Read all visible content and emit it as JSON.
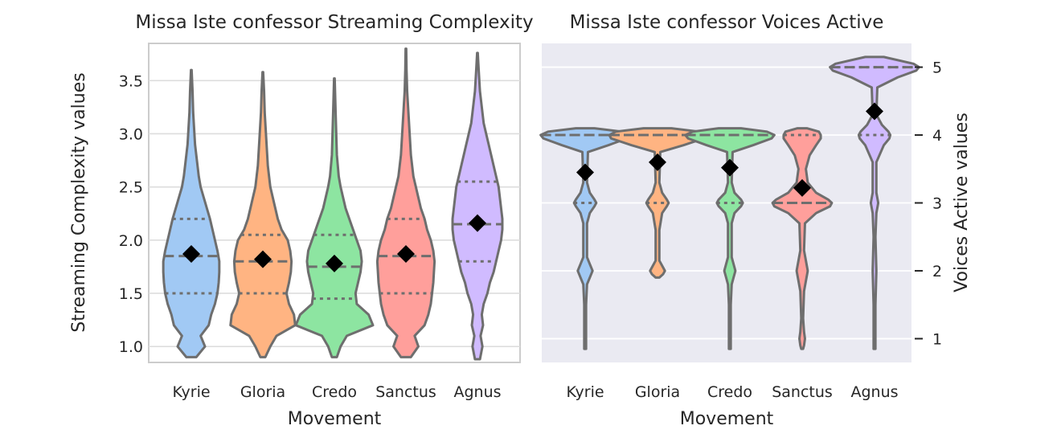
{
  "chart_data": [
    {
      "type": "violin",
      "title": "Missa Iste confessor Streaming Complexity",
      "xlabel": "Movement",
      "ylabel": "Streaming Complexity values",
      "categories": [
        "Kyrie",
        "Gloria",
        "Credo",
        "Sanctus",
        "Agnus"
      ],
      "ylim": [
        0.85,
        3.85
      ],
      "yticks": [
        "1.0",
        "1.5",
        "2.0",
        "2.5",
        "3.0",
        "3.5"
      ],
      "style": "whitegrid",
      "grid": true,
      "colors": [
        "#a1c9f4",
        "#ffb482",
        "#8de5a1",
        "#ff9f9b",
        "#d0bbff"
      ],
      "series": [
        {
          "name": "Kyrie",
          "min": 0.9,
          "max": 3.6,
          "q1": 1.5,
          "median": 1.85,
          "q3": 2.2,
          "mean": 1.87,
          "density": [
            [
              0.9,
              0.08
            ],
            [
              1.0,
              0.22
            ],
            [
              1.1,
              0.15
            ],
            [
              1.2,
              0.28
            ],
            [
              1.3,
              0.32
            ],
            [
              1.4,
              0.38
            ],
            [
              1.5,
              0.42
            ],
            [
              1.6,
              0.44
            ],
            [
              1.7,
              0.45
            ],
            [
              1.8,
              0.45
            ],
            [
              1.9,
              0.42
            ],
            [
              2.0,
              0.38
            ],
            [
              2.1,
              0.34
            ],
            [
              2.2,
              0.3
            ],
            [
              2.3,
              0.25
            ],
            [
              2.4,
              0.2
            ],
            [
              2.5,
              0.15
            ],
            [
              2.6,
              0.12
            ],
            [
              2.7,
              0.1
            ],
            [
              2.8,
              0.08
            ],
            [
              2.9,
              0.06
            ],
            [
              3.0,
              0.05
            ],
            [
              3.2,
              0.03
            ],
            [
              3.4,
              0.02
            ],
            [
              3.6,
              0.005
            ]
          ]
        },
        {
          "name": "Gloria",
          "min": 0.9,
          "max": 3.58,
          "q1": 1.5,
          "median": 1.8,
          "q3": 2.05,
          "mean": 1.82,
          "density": [
            [
              0.9,
              0.04
            ],
            [
              1.0,
              0.12
            ],
            [
              1.1,
              0.22
            ],
            [
              1.2,
              0.52
            ],
            [
              1.3,
              0.5
            ],
            [
              1.4,
              0.42
            ],
            [
              1.5,
              0.38
            ],
            [
              1.6,
              0.42
            ],
            [
              1.7,
              0.45
            ],
            [
              1.8,
              0.46
            ],
            [
              1.9,
              0.44
            ],
            [
              2.0,
              0.4
            ],
            [
              2.1,
              0.3
            ],
            [
              2.2,
              0.24
            ],
            [
              2.3,
              0.2
            ],
            [
              2.4,
              0.16
            ],
            [
              2.5,
              0.12
            ],
            [
              2.6,
              0.1
            ],
            [
              2.7,
              0.08
            ],
            [
              2.8,
              0.07
            ],
            [
              3.0,
              0.05
            ],
            [
              3.2,
              0.03
            ],
            [
              3.4,
              0.02
            ],
            [
              3.58,
              0.005
            ]
          ]
        },
        {
          "name": "Credo",
          "min": 0.9,
          "max": 3.52,
          "q1": 1.45,
          "median": 1.75,
          "q3": 2.05,
          "mean": 1.78,
          "density": [
            [
              0.9,
              0.04
            ],
            [
              1.0,
              0.1
            ],
            [
              1.1,
              0.2
            ],
            [
              1.2,
              0.62
            ],
            [
              1.3,
              0.55
            ],
            [
              1.4,
              0.36
            ],
            [
              1.5,
              0.34
            ],
            [
              1.6,
              0.38
            ],
            [
              1.7,
              0.42
            ],
            [
              1.8,
              0.44
            ],
            [
              1.9,
              0.42
            ],
            [
              2.0,
              0.36
            ],
            [
              2.1,
              0.3
            ],
            [
              2.2,
              0.24
            ],
            [
              2.3,
              0.18
            ],
            [
              2.4,
              0.14
            ],
            [
              2.5,
              0.1
            ],
            [
              2.6,
              0.07
            ],
            [
              2.8,
              0.04
            ],
            [
              3.0,
              0.03
            ],
            [
              3.2,
              0.02
            ],
            [
              3.52,
              0.005
            ]
          ]
        },
        {
          "name": "Sanctus",
          "min": 0.9,
          "max": 3.8,
          "q1": 1.5,
          "median": 1.85,
          "q3": 2.2,
          "mean": 1.87,
          "density": [
            [
              0.9,
              0.08
            ],
            [
              1.0,
              0.2
            ],
            [
              1.1,
              0.14
            ],
            [
              1.2,
              0.3
            ],
            [
              1.3,
              0.36
            ],
            [
              1.4,
              0.4
            ],
            [
              1.5,
              0.42
            ],
            [
              1.6,
              0.44
            ],
            [
              1.7,
              0.45
            ],
            [
              1.8,
              0.46
            ],
            [
              1.9,
              0.44
            ],
            [
              2.0,
              0.4
            ],
            [
              2.1,
              0.34
            ],
            [
              2.2,
              0.3
            ],
            [
              2.3,
              0.24
            ],
            [
              2.4,
              0.2
            ],
            [
              2.5,
              0.16
            ],
            [
              2.6,
              0.12
            ],
            [
              2.7,
              0.1
            ],
            [
              2.8,
              0.08
            ],
            [
              3.0,
              0.06
            ],
            [
              3.2,
              0.04
            ],
            [
              3.4,
              0.02
            ],
            [
              3.6,
              0.01
            ],
            [
              3.8,
              0.005
            ]
          ]
        },
        {
          "name": "Agnus",
          "min": 0.88,
          "max": 3.76,
          "q1": 1.8,
          "median": 2.15,
          "q3": 2.55,
          "mean": 2.16,
          "density": [
            [
              0.88,
              0.04
            ],
            [
              1.0,
              0.08
            ],
            [
              1.1,
              0.05
            ],
            [
              1.2,
              0.09
            ],
            [
              1.3,
              0.07
            ],
            [
              1.4,
              0.1
            ],
            [
              1.5,
              0.16
            ],
            [
              1.6,
              0.2
            ],
            [
              1.7,
              0.26
            ],
            [
              1.8,
              0.3
            ],
            [
              1.9,
              0.34
            ],
            [
              2.0,
              0.38
            ],
            [
              2.1,
              0.4
            ],
            [
              2.2,
              0.4
            ],
            [
              2.3,
              0.38
            ],
            [
              2.4,
              0.36
            ],
            [
              2.5,
              0.34
            ],
            [
              2.6,
              0.3
            ],
            [
              2.7,
              0.26
            ],
            [
              2.8,
              0.22
            ],
            [
              2.9,
              0.18
            ],
            [
              3.0,
              0.14
            ],
            [
              3.1,
              0.1
            ],
            [
              3.2,
              0.08
            ],
            [
              3.4,
              0.04
            ],
            [
              3.6,
              0.02
            ],
            [
              3.76,
              0.005
            ]
          ]
        }
      ]
    },
    {
      "type": "violin",
      "title": "Missa Iste confessor Voices Active",
      "xlabel": "Movement",
      "ylabel": "Voices Active values",
      "categories": [
        "Kyrie",
        "Gloria",
        "Credo",
        "Sanctus",
        "Agnus"
      ],
      "ylim": [
        0.65,
        5.35
      ],
      "yticks": [
        "1",
        "2",
        "3",
        "4",
        "5"
      ],
      "yaxis_position": "right",
      "style": "darkgrid",
      "grid": true,
      "colors": [
        "#a1c9f4",
        "#ffb482",
        "#8de5a1",
        "#ff9f9b",
        "#d0bbff"
      ],
      "series": [
        {
          "name": "Kyrie",
          "min": 0.85,
          "max": 4.1,
          "q1": 3.0,
          "median": 4.0,
          "q3": 4.0,
          "mean": 3.45,
          "density": [
            [
              0.85,
              0.01
            ],
            [
              1.0,
              0.01
            ],
            [
              1.5,
              0.01
            ],
            [
              1.8,
              0.02
            ],
            [
              1.9,
              0.05
            ],
            [
              2.0,
              0.08
            ],
            [
              2.1,
              0.05
            ],
            [
              2.2,
              0.02
            ],
            [
              2.7,
              0.02
            ],
            [
              2.85,
              0.05
            ],
            [
              2.95,
              0.1
            ],
            [
              3.0,
              0.12
            ],
            [
              3.05,
              0.1
            ],
            [
              3.15,
              0.05
            ],
            [
              3.3,
              0.02
            ],
            [
              3.75,
              0.03
            ],
            [
              3.85,
              0.25
            ],
            [
              3.95,
              0.45
            ],
            [
              4.0,
              0.48
            ],
            [
              4.05,
              0.4
            ],
            [
              4.1,
              0.1
            ]
          ]
        },
        {
          "name": "Gloria",
          "min": 1.9,
          "max": 4.1,
          "q1": 3.0,
          "median": 4.0,
          "q3": 4.0,
          "mean": 3.6,
          "density": [
            [
              1.9,
              0.02
            ],
            [
              1.95,
              0.06
            ],
            [
              2.0,
              0.08
            ],
            [
              2.05,
              0.06
            ],
            [
              2.15,
              0.02
            ],
            [
              2.6,
              0.02
            ],
            [
              2.85,
              0.05
            ],
            [
              2.95,
              0.1
            ],
            [
              3.0,
              0.12
            ],
            [
              3.05,
              0.1
            ],
            [
              3.15,
              0.05
            ],
            [
              3.3,
              0.02
            ],
            [
              3.75,
              0.03
            ],
            [
              3.85,
              0.28
            ],
            [
              3.95,
              0.5
            ],
            [
              4.0,
              0.52
            ],
            [
              4.05,
              0.45
            ],
            [
              4.1,
              0.15
            ]
          ]
        },
        {
          "name": "Credo",
          "min": 0.85,
          "max": 4.1,
          "q1": 3.0,
          "median": 4.0,
          "q3": 4.0,
          "mean": 3.52,
          "density": [
            [
              0.85,
              0.01
            ],
            [
              1.0,
              0.01
            ],
            [
              1.5,
              0.01
            ],
            [
              1.8,
              0.02
            ],
            [
              1.9,
              0.04
            ],
            [
              2.0,
              0.06
            ],
            [
              2.1,
              0.04
            ],
            [
              2.2,
              0.02
            ],
            [
              2.7,
              0.02
            ],
            [
              2.85,
              0.05
            ],
            [
              2.95,
              0.12
            ],
            [
              3.0,
              0.14
            ],
            [
              3.05,
              0.12
            ],
            [
              3.15,
              0.05
            ],
            [
              3.3,
              0.02
            ],
            [
              3.75,
              0.03
            ],
            [
              3.85,
              0.25
            ],
            [
              3.95,
              0.45
            ],
            [
              4.0,
              0.48
            ],
            [
              4.05,
              0.4
            ],
            [
              4.1,
              0.12
            ]
          ]
        },
        {
          "name": "Sanctus",
          "min": 0.85,
          "max": 4.1,
          "q1": 3.0,
          "median": 3.0,
          "q3": 4.0,
          "mean": 3.22,
          "density": [
            [
              0.85,
              0.01
            ],
            [
              0.9,
              0.02
            ],
            [
              1.0,
              0.03
            ],
            [
              1.1,
              0.02
            ],
            [
              1.3,
              0.01
            ],
            [
              1.7,
              0.02
            ],
            [
              1.85,
              0.04
            ],
            [
              2.0,
              0.06
            ],
            [
              2.15,
              0.04
            ],
            [
              2.3,
              0.02
            ],
            [
              2.7,
              0.03
            ],
            [
              2.85,
              0.15
            ],
            [
              2.95,
              0.3
            ],
            [
              3.0,
              0.32
            ],
            [
              3.05,
              0.28
            ],
            [
              3.15,
              0.15
            ],
            [
              3.3,
              0.06
            ],
            [
              3.5,
              0.04
            ],
            [
              3.7,
              0.08
            ],
            [
              3.85,
              0.15
            ],
            [
              3.95,
              0.2
            ],
            [
              4.0,
              0.2
            ],
            [
              4.05,
              0.18
            ],
            [
              4.1,
              0.05
            ]
          ]
        },
        {
          "name": "Agnus",
          "min": 0.85,
          "max": 5.15,
          "q1": 4.0,
          "median": 5.0,
          "q3": 5.0,
          "mean": 4.35,
          "density": [
            [
              0.85,
              0.01
            ],
            [
              1.5,
              0.01
            ],
            [
              2.0,
              0.02
            ],
            [
              2.5,
              0.01
            ],
            [
              2.85,
              0.02
            ],
            [
              3.0,
              0.04
            ],
            [
              3.15,
              0.02
            ],
            [
              3.6,
              0.02
            ],
            [
              3.85,
              0.1
            ],
            [
              3.95,
              0.16
            ],
            [
              4.0,
              0.17
            ],
            [
              4.05,
              0.15
            ],
            [
              4.15,
              0.08
            ],
            [
              4.3,
              0.02
            ],
            [
              4.7,
              0.03
            ],
            [
              4.85,
              0.25
            ],
            [
              4.95,
              0.45
            ],
            [
              5.0,
              0.48
            ],
            [
              5.05,
              0.42
            ],
            [
              5.15,
              0.1
            ]
          ]
        }
      ]
    }
  ]
}
